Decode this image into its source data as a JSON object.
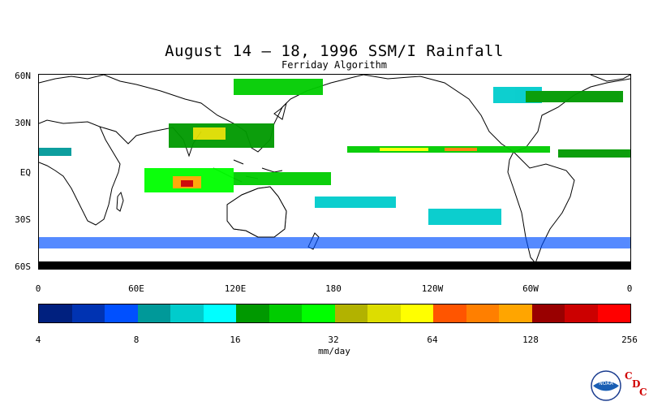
{
  "title": "August 14 – 18, 1996 SSM/I Rainfall",
  "subtitle": "Ferriday Algorithm",
  "lat_labels": [
    "60N",
    "30N",
    "EQ",
    "30S",
    "60S"
  ],
  "lon_labels": [
    "0",
    "60E",
    "120E",
    "180",
    "120W",
    "60W",
    "0"
  ],
  "colorbar": {
    "colors": [
      "#00207f",
      "#0033b2",
      "#0050ff",
      "#009999",
      "#00cccc",
      "#00ffff",
      "#009900",
      "#00cc00",
      "#00ff00",
      "#b2b200",
      "#dddd00",
      "#ffff00",
      "#ff5500",
      "#ff7f00",
      "#ffa500",
      "#990000",
      "#cc0000",
      "#ff0000"
    ],
    "ticks": [
      "4",
      "8",
      "16",
      "32",
      "64",
      "128",
      "256"
    ],
    "unit": "mm/day"
  },
  "logo": {
    "text": "NOAA",
    "cdc": [
      "C",
      "D",
      "C"
    ]
  }
}
